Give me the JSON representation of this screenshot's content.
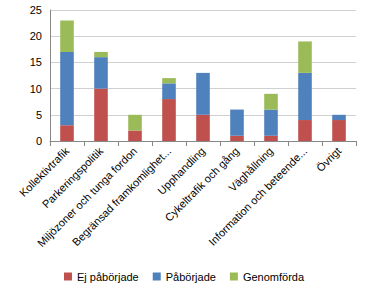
{
  "chart_data": {
    "type": "bar",
    "stacked": true,
    "grid": true,
    "legend": "bottom",
    "categories": [
      "Kollektivtrafik",
      "Parkeringspolitik",
      "Miljözoner och tunga fordon",
      "Begränsad framkomlighet...",
      "Upphandling",
      "Cykeltrafik och gång",
      "Väghållning",
      "Information och beteende...",
      "Övrigt"
    ],
    "series": [
      {
        "name": "Ej påbörjade",
        "color": "#c0504d",
        "values": [
          3,
          10,
          2,
          8,
          5,
          1,
          1,
          4,
          4
        ]
      },
      {
        "name": "Påbörjade",
        "color": "#4f81bd",
        "values": [
          14,
          6,
          0,
          3,
          8,
          5,
          5,
          9,
          1
        ]
      },
      {
        "name": "Genomförda",
        "color": "#9bbb59",
        "values": [
          6,
          1,
          3,
          1,
          0,
          0,
          3,
          6,
          0
        ]
      }
    ],
    "ylim": [
      0,
      25
    ],
    "yticks": [
      0,
      5,
      10,
      15,
      20,
      25
    ]
  }
}
